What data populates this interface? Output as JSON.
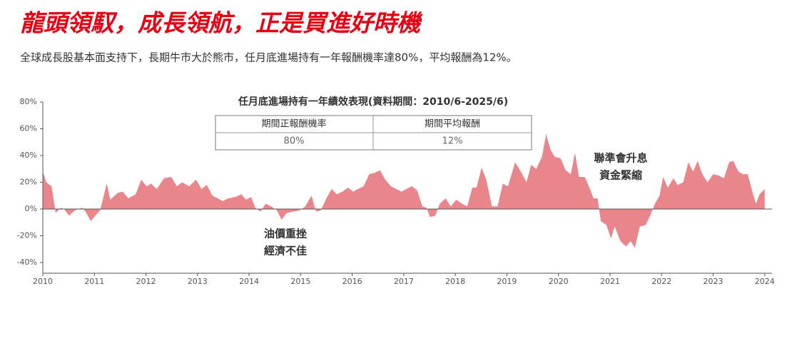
{
  "chart_data": {
    "type": "area",
    "title": "龍頭領馭，成長領航，正是買進好時機",
    "subtitle": "全球成長股基本面支持下，長期牛市大於熊市，任月底進場持有一年報酬機率達80%，平均報酬為12%。",
    "color": "#e8868c",
    "x": [
      2010.0,
      2010.07,
      2010.17,
      2010.25,
      2010.35,
      2010.41,
      2010.51,
      2010.62,
      2010.76,
      2010.83,
      2010.93,
      2011.04,
      2011.11,
      2011.24,
      2011.31,
      2011.45,
      2011.55,
      2011.66,
      2011.8,
      2011.91,
      2012.01,
      2012.1,
      2012.21,
      2012.35,
      2012.49,
      2012.6,
      2012.7,
      2012.84,
      2012.97,
      2013.08,
      2013.18,
      2013.29,
      2013.39,
      2013.49,
      2013.6,
      2013.73,
      2013.85,
      2013.94,
      2014.04,
      2014.12,
      2014.22,
      2014.32,
      2014.43,
      2014.54,
      2014.63,
      2014.73,
      2014.84,
      2014.98,
      2015.09,
      2015.21,
      2015.3,
      2015.39,
      2015.5,
      2015.6,
      2015.7,
      2015.81,
      2015.92,
      2016.02,
      2016.11,
      2016.22,
      2016.33,
      2016.43,
      2016.54,
      2016.64,
      2016.75,
      2016.85,
      2016.96,
      2017.05,
      2017.16,
      2017.26,
      2017.36,
      2017.44,
      2017.51,
      2017.61,
      2017.7,
      2017.81,
      2017.91,
      2018.02,
      2018.13,
      2018.23,
      2018.33,
      2018.41,
      2018.51,
      2018.6,
      2018.71,
      2018.82,
      2018.92,
      2019.02,
      2019.16,
      2019.27,
      2019.38,
      2019.47,
      2019.57,
      2019.68,
      2019.76,
      2019.85,
      2019.93,
      2020.04,
      2020.14,
      2020.24,
      2020.32,
      2020.4,
      2020.51,
      2020.59,
      2020.68,
      2020.76,
      2020.82,
      2020.93,
      2021.02,
      2021.09,
      2021.2,
      2021.31,
      2021.4,
      2021.48,
      2021.58,
      2021.69,
      2021.78,
      2021.87,
      2021.96,
      2022.03,
      2022.12,
      2022.23,
      2022.31,
      2022.42,
      2022.52,
      2022.61,
      2022.7,
      2022.79,
      2022.89,
      2023.0,
      2023.11,
      2023.21,
      2023.31,
      2023.39,
      2023.49,
      2023.58,
      2023.67,
      2023.76,
      2023.83,
      2023.9,
      2024.0
    ],
    "values": [
      28,
      20,
      17,
      -3,
      1,
      0,
      -5,
      -1,
      1,
      -2,
      -9,
      -4,
      -1,
      19,
      7,
      12,
      13,
      8,
      11,
      22,
      17,
      19,
      15,
      23,
      24,
      17,
      20,
      17,
      22,
      15,
      18,
      10,
      8,
      6,
      8,
      9,
      11,
      7,
      9,
      1,
      -2,
      4,
      2,
      -1,
      -8,
      -3,
      -2,
      -1,
      2,
      10,
      -2,
      -1,
      8,
      15,
      11,
      13,
      16,
      13,
      15,
      17,
      26,
      27,
      29,
      22,
      17,
      15,
      13,
      15,
      17,
      14,
      2,
      1,
      -6,
      -5,
      4,
      8,
      2,
      7,
      4,
      2,
      16,
      16,
      31,
      22,
      2,
      2,
      19,
      17,
      35,
      28,
      20,
      33,
      30,
      39,
      56,
      44,
      39,
      38,
      29,
      26,
      42,
      24,
      24,
      17,
      8,
      8,
      -9,
      -12,
      -22,
      -13,
      -24,
      -28,
      -24,
      -29,
      -13,
      -12,
      -5,
      4,
      10,
      24,
      16,
      23,
      18,
      20,
      35,
      28,
      36,
      26,
      20,
      26,
      25,
      23,
      35,
      36,
      28,
      26,
      26,
      13,
      4,
      11,
      15
    ],
    "xlim": [
      2010,
      2024.1
    ],
    "xticks": [
      2010,
      2011,
      2012,
      2013,
      2014,
      2015,
      2016,
      2017,
      2018,
      2019,
      2020,
      2021,
      2022,
      2023,
      2024
    ],
    "ylim": [
      -48,
      80
    ],
    "yticks": [
      {
        "value": 80,
        "label": "80%"
      },
      {
        "value": 60,
        "label": "60%"
      },
      {
        "value": 40,
        "label": "40%"
      },
      {
        "value": 20,
        "label": "20%"
      },
      {
        "value": 0,
        "label": "0%"
      },
      {
        "value": -20,
        "label": "-20%"
      },
      {
        "value": -40,
        "label": "-40%"
      }
    ],
    "table": {
      "title": "任月底進場持有一年績效表現(資料期間：2010/6-2025/6)",
      "headers": [
        "期間正報酬機率",
        "期間平均報酬"
      ],
      "rows": [
        [
          "80%",
          "12%"
        ]
      ]
    },
    "annotations": [
      {
        "lines": [
          "油價重挫",
          "經濟不佳"
        ]
      },
      {
        "lines": [
          "聯準會升息",
          "資金緊縮"
        ]
      }
    ]
  }
}
